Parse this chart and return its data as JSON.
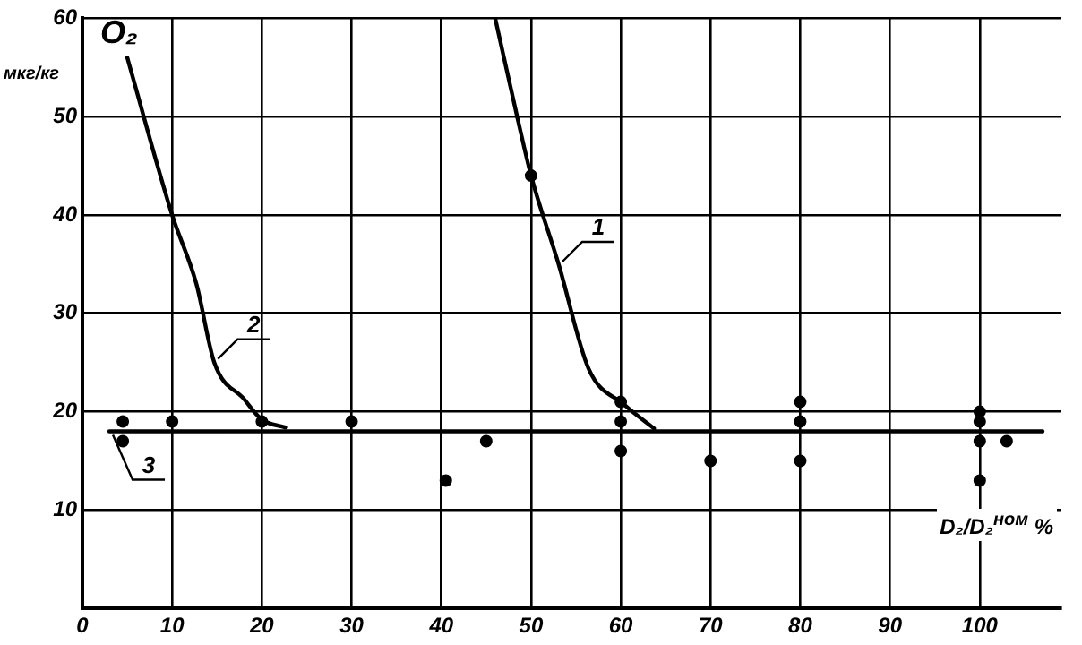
{
  "chart_data": {
    "type": "scatter",
    "title": "O₂",
    "ylabel": "мкг/кг",
    "xlabel": "D₂/D₂$^{ном}$ %",
    "xlim": [
      0,
      109
    ],
    "xticks": [
      0,
      10,
      20,
      30,
      40,
      50,
      60,
      70,
      80,
      90,
      100
    ],
    "ylim": [
      0,
      60
    ],
    "yticks": [
      10,
      20,
      30,
      40,
      50,
      60
    ],
    "grid": true,
    "marker": "circle",
    "series": [
      {
        "type": "line",
        "name": "1",
        "color": "#000000",
        "marker": "none",
        "x": [
          46,
          48.5,
          50,
          53.1,
          56.4,
          60.4,
          63.7
        ],
        "values": [
          60,
          49.8,
          44,
          34.9,
          24.4,
          20.7,
          18.3
        ]
      },
      {
        "type": "line",
        "name": "2",
        "color": "#000000",
        "marker": "none",
        "x": [
          5,
          10,
          12.7,
          14.7,
          18,
          20,
          22.6
        ],
        "values": [
          56,
          40,
          33,
          25,
          21.3,
          19.2,
          18.4
        ]
      },
      {
        "type": "line",
        "name": "3",
        "color": "#000000",
        "marker": "none",
        "x": [
          3,
          107
        ],
        "values": [
          18,
          18
        ]
      },
      {
        "color": "#000000",
        "x": [
          4.5,
          4.5,
          10,
          20,
          30,
          40.5,
          45,
          50,
          60,
          60,
          60,
          70,
          80,
          80,
          80,
          100,
          100,
          100,
          100,
          103
        ],
        "values": [
          19,
          17,
          19,
          19,
          19,
          13,
          17,
          44,
          21,
          19,
          16,
          15,
          21,
          19,
          15,
          20,
          19,
          17,
          13,
          17
        ]
      }
    ]
  }
}
